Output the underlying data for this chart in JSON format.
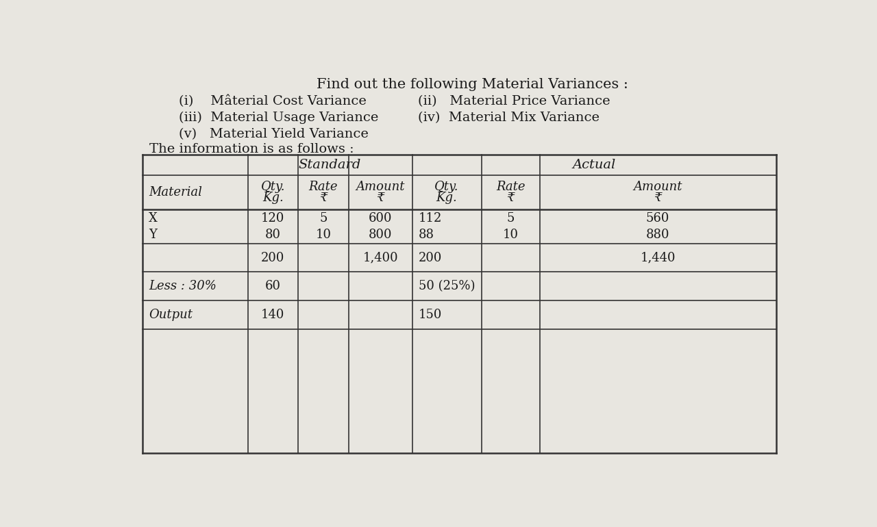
{
  "bg_color": "#e8e6e0",
  "paper_color": "#f0eeea",
  "title_line": "Find out the following Material Variances :",
  "line1_left": "(i)    Mâterial Cost Variance",
  "line1_right": "(ii)   Material Price Variance",
  "line2_left": "(iii)  Material Usage Variance",
  "line2_right": "(iv)  Material Mix Variance",
  "line3": "(v)   Material Yield Variance",
  "line4": "The information is as follows :",
  "std_label": "Standard",
  "act_label": "Actual",
  "sub_headers": [
    "Material",
    "Qty.\nKg.",
    "Rate\n₹",
    "Amount\n₹",
    "Qty.\nKg.",
    "Rate\n₹",
    "Amount\n₹"
  ],
  "data_rows": [
    [
      "X",
      "120",
      "5",
      "600",
      "112",
      "5",
      "560"
    ],
    [
      "Y",
      "80",
      "10",
      "800",
      "88",
      "10",
      "880"
    ],
    [
      "",
      "200",
      "",
      "1,400",
      "200",
      "",
      "1,440"
    ],
    [
      "Less : 30%",
      "60",
      "",
      "",
      "50 (25%)",
      "",
      ""
    ],
    [
      "Output",
      "140",
      "",
      "",
      "150",
      "",
      ""
    ]
  ],
  "text_color": "#1a1a1a",
  "line_color": "#333333",
  "title_fontsize": 15,
  "body_fontsize": 14,
  "table_fontsize": 13
}
